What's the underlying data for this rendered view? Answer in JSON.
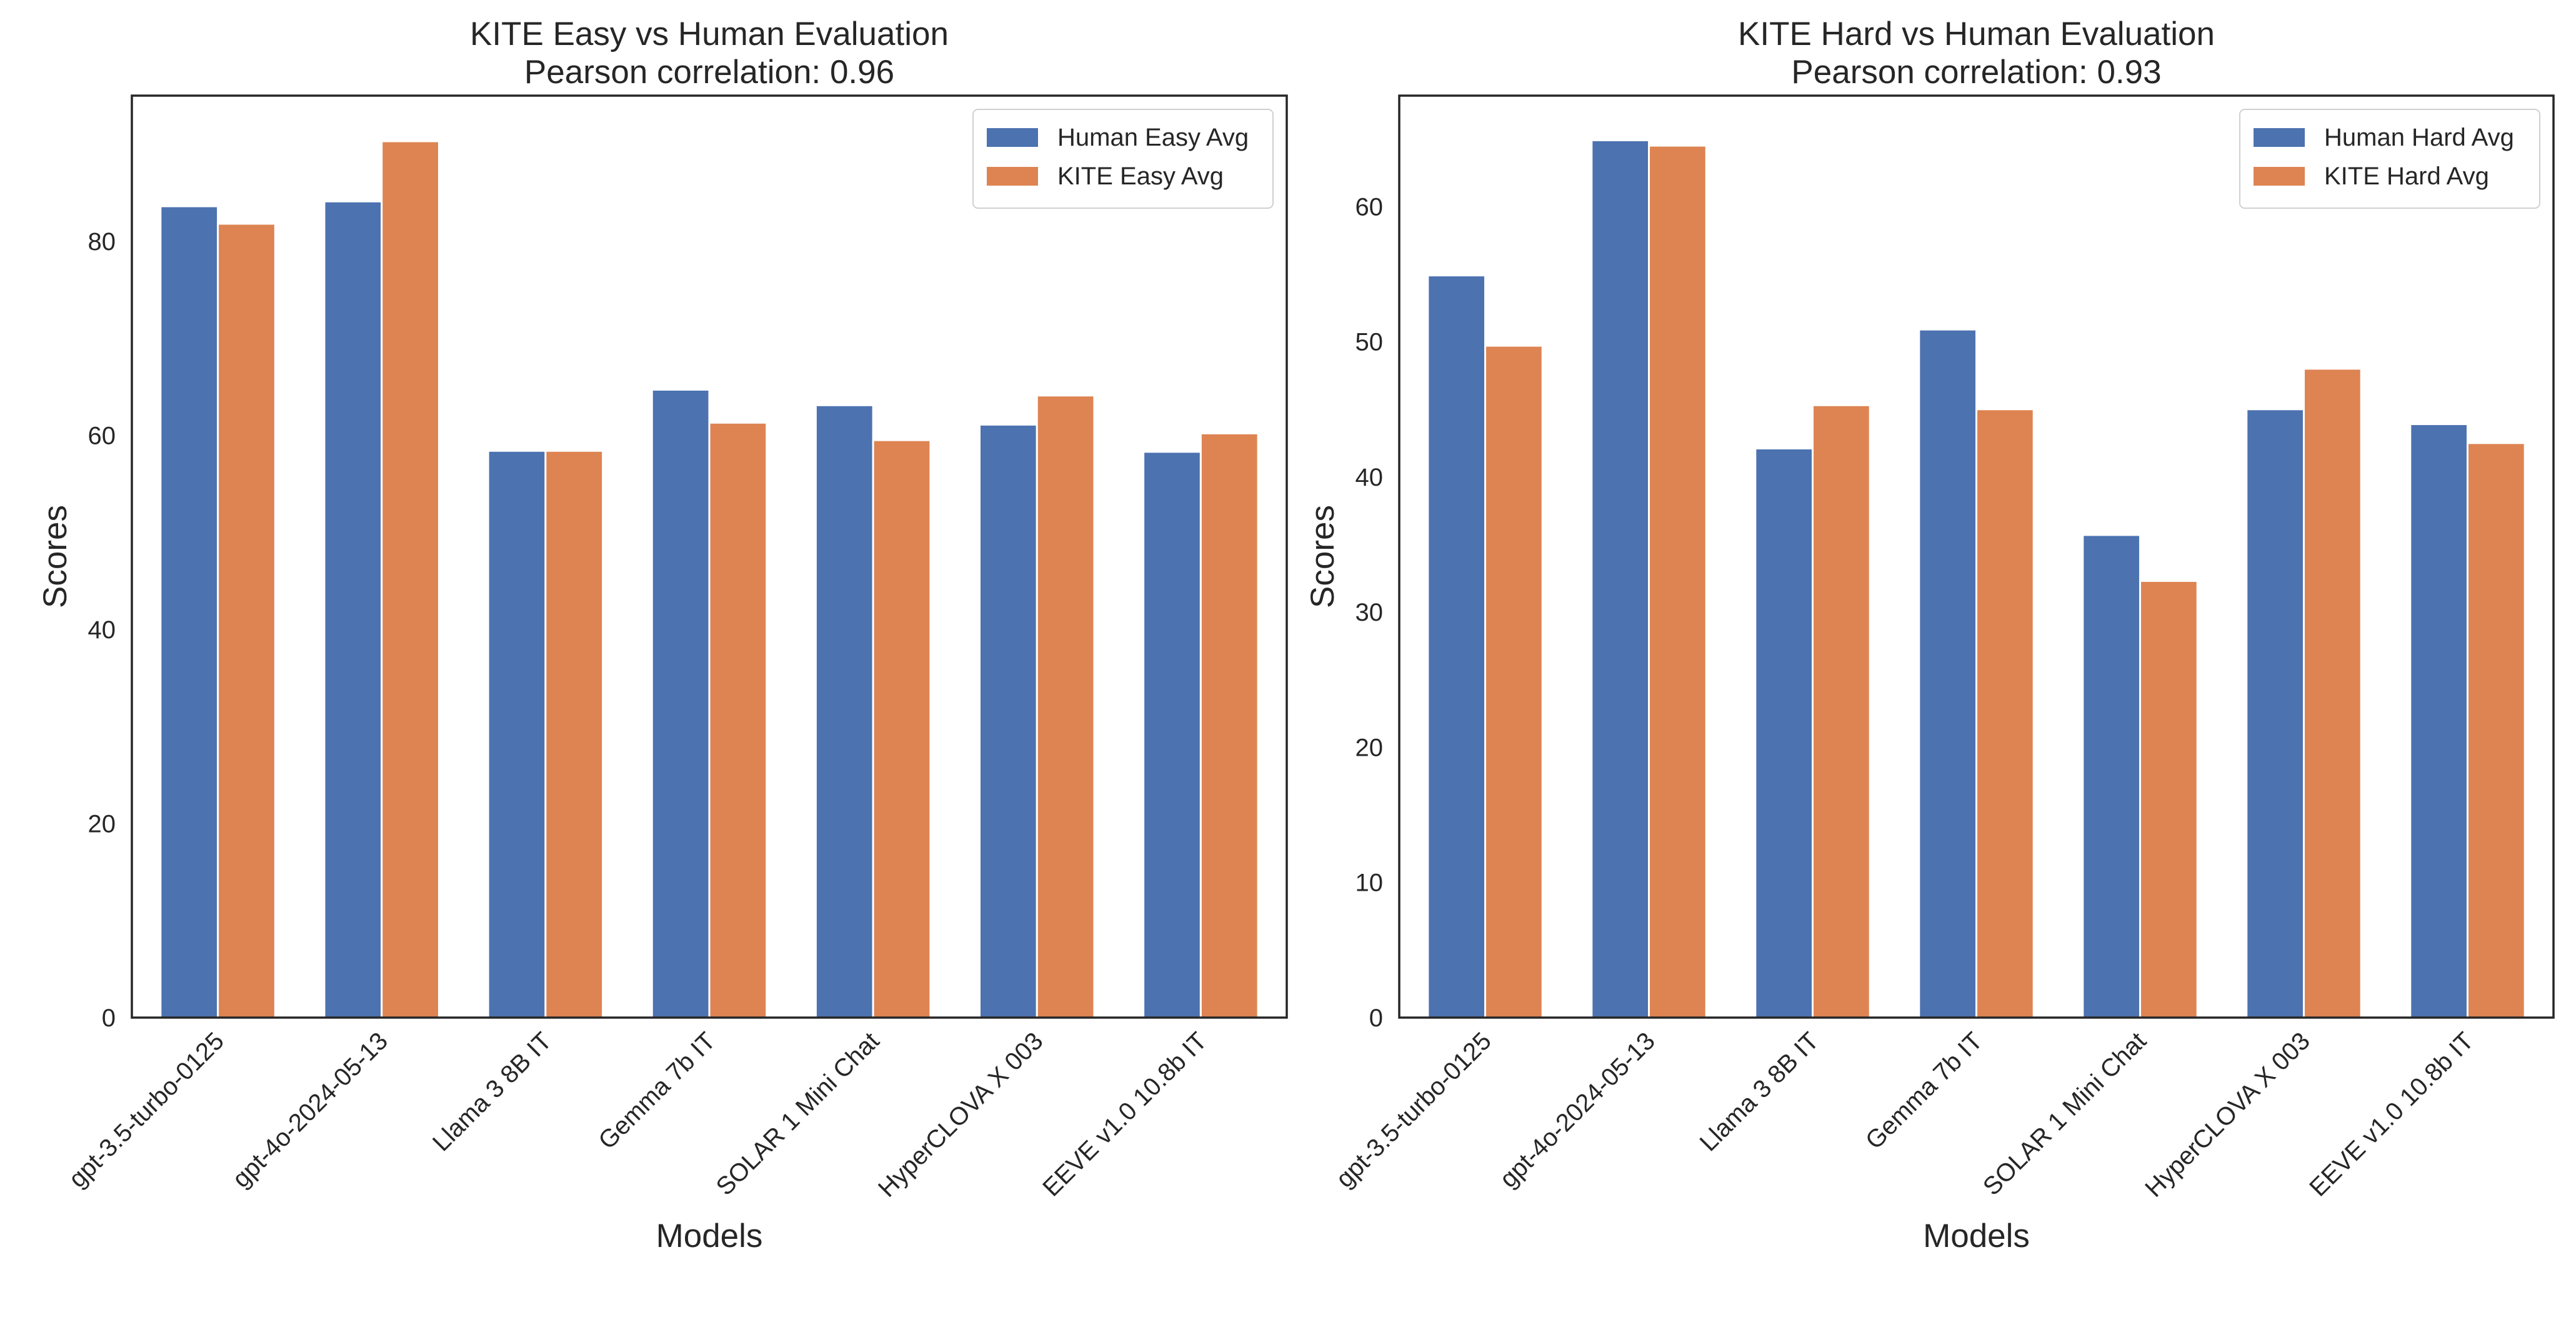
{
  "chart_data": [
    {
      "type": "bar",
      "title": "KITE Easy vs Human Evaluation",
      "subtitle": "Pearson correlation: 0.96",
      "xlabel": "Models",
      "ylabel": "Scores",
      "ylim": [
        0,
        95
      ],
      "yticks": [
        0,
        20,
        40,
        60,
        80
      ],
      "grid": false,
      "legend_position": "top-right",
      "categories": [
        "gpt-3.5-turbo-0125",
        "gpt-4o-2024-05-13",
        "Llama 3 8B IT",
        "Gemma 7b IT",
        "SOLAR 1 Mini Chat",
        "HyperCLOVA X 003",
        "EEVE v1.0 10.8b IT"
      ],
      "series": [
        {
          "name": "Human Easy Avg",
          "color": "#4c72b0",
          "values": [
            83.6,
            84.1,
            58.4,
            64.7,
            63.1,
            61.1,
            58.3
          ]
        },
        {
          "name": "KITE Easy Avg",
          "color": "#dd8452",
          "values": [
            81.8,
            90.3,
            58.4,
            61.3,
            59.5,
            64.1,
            60.2
          ]
        }
      ]
    },
    {
      "type": "bar",
      "title": "KITE Hard vs Human Evaluation",
      "subtitle": "Pearson correlation: 0.93",
      "xlabel": "Models",
      "ylabel": "Scores",
      "ylim": [
        0,
        68.2
      ],
      "yticks": [
        0,
        10,
        20,
        30,
        40,
        50,
        60
      ],
      "grid": false,
      "legend_position": "top-right",
      "categories": [
        "gpt-3.5-turbo-0125",
        "gpt-4o-2024-05-13",
        "Llama 3 8B IT",
        "Gemma 7b IT",
        "SOLAR 1 Mini Chat",
        "HyperCLOVA X 003",
        "EEVE v1.0 10.8b IT"
      ],
      "series": [
        {
          "name": "Human Hard Avg",
          "color": "#4c72b0",
          "values": [
            54.9,
            64.9,
            42.1,
            50.9,
            35.7,
            45.0,
            43.9
          ]
        },
        {
          "name": "KITE Hard Avg",
          "color": "#dd8452",
          "values": [
            49.7,
            64.5,
            45.3,
            45.0,
            32.3,
            48.0,
            42.5
          ]
        }
      ]
    }
  ]
}
